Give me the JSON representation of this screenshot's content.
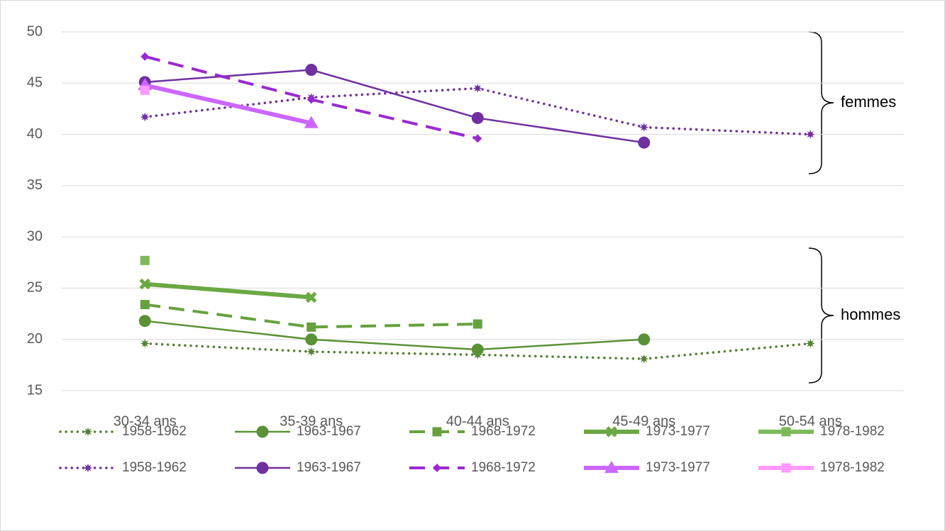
{
  "chart_data": {
    "type": "line",
    "categories": [
      "30-34 ans",
      "35-39 ans",
      "40-44 ans",
      "45-49 ans",
      "50-54 ans"
    ],
    "ylim": [
      15,
      50
    ],
    "yticks": [
      15,
      20,
      25,
      30,
      35,
      40,
      45,
      50
    ],
    "grid": true,
    "annotations": [
      "femmes",
      "hommes"
    ],
    "series": [
      {
        "name": "1958-1962",
        "color": "#548235",
        "line_style": "dotted",
        "marker": "star",
        "values": [
          19.6,
          18.8,
          18.5,
          18.1,
          19.6
        ]
      },
      {
        "name": "1963-1967",
        "color": "#5b9238",
        "line_style": "solid",
        "marker": "circle",
        "values": [
          21.8,
          20.0,
          19.0,
          20.0,
          null
        ]
      },
      {
        "name": "1968-1972",
        "color": "#65a23e",
        "line_style": "dashed",
        "marker": "square",
        "values": [
          23.4,
          21.2,
          21.5,
          null,
          null
        ]
      },
      {
        "name": "1973-1977",
        "color": "#6aa843",
        "line_style": "thick",
        "marker": "cross",
        "values": [
          25.4,
          24.1,
          null,
          null,
          null
        ]
      },
      {
        "name": "1978-1982",
        "color": "#7dba5a",
        "line_style": "thick",
        "marker": "square",
        "values": [
          27.7,
          null,
          null,
          null,
          null
        ]
      },
      {
        "name": "1958-1962",
        "color": "#7030a0",
        "line_style": "dotted",
        "marker": "star",
        "values": [
          41.7,
          43.6,
          44.5,
          40.7,
          40.0
        ]
      },
      {
        "name": "1963-1967",
        "color": "#7030a0",
        "line_style": "solid",
        "marker": "circle",
        "values": [
          45.1,
          46.3,
          41.6,
          39.2,
          null
        ]
      },
      {
        "name": "1968-1972",
        "color": "#9a2ad0",
        "line_style": "dashed",
        "marker": "diamond",
        "values": [
          47.6,
          43.4,
          39.6,
          null,
          null
        ]
      },
      {
        "name": "1973-1977",
        "color": "#cc66ff",
        "line_style": "thick",
        "marker": "triangle",
        "values": [
          44.8,
          41.1,
          null,
          null,
          null
        ]
      },
      {
        "name": "1978-1982",
        "color": "#ff99ff",
        "line_style": "thick",
        "marker": "square",
        "values": [
          44.3,
          null,
          null,
          null,
          null
        ]
      }
    ]
  }
}
